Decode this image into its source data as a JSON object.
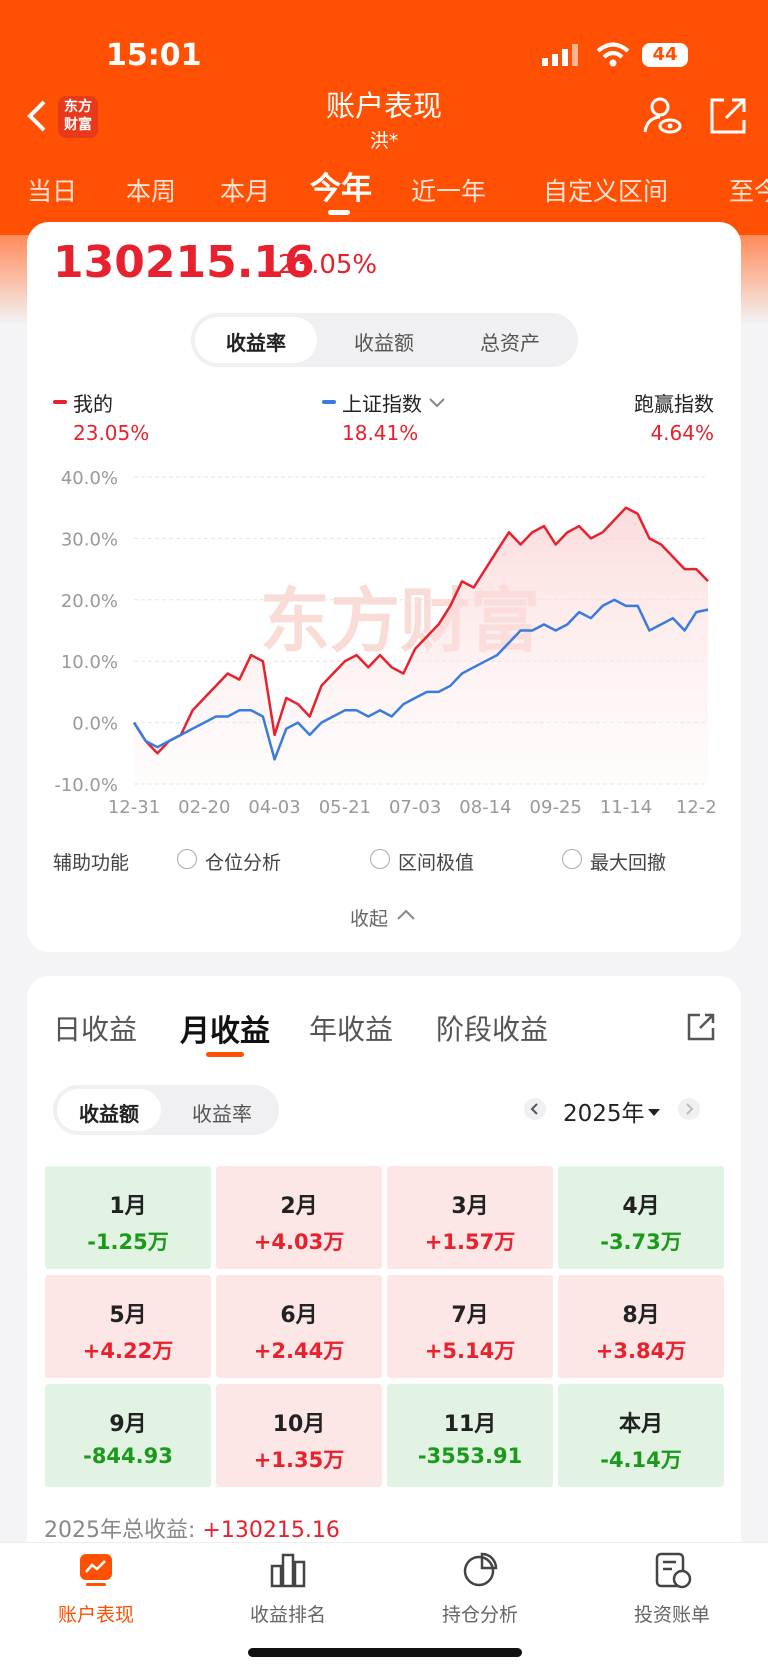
{
  "status_bar": {
    "time": "15:01",
    "battery": "44"
  },
  "header": {
    "logo": [
      "东方",
      "财富"
    ],
    "title": "账户表现",
    "subtitle": "洪*"
  },
  "period_tabs": [
    "当日",
    "本周",
    "本月",
    "今年",
    "近一年",
    "自定义区间",
    "至今"
  ],
  "summary": {
    "amount": "130215.16",
    "rate": "23.05%"
  },
  "chart_tabs": [
    "收益率",
    "收益额",
    "总资产"
  ],
  "legend_values": [
    "23.05%",
    "18.41%"
  ],
  "outperform": {
    "label": "跑赢指数",
    "value": "4.64%"
  },
  "watermark": "东方财富",
  "chart_data": {
    "type": "line",
    "categories": [
      "12-31",
      null,
      null,
      null,
      null,
      null,
      "02-20",
      null,
      null,
      null,
      null,
      null,
      "04-03",
      null,
      null,
      null,
      null,
      null,
      "05-21",
      null,
      null,
      null,
      null,
      null,
      "07-03",
      null,
      null,
      null,
      null,
      null,
      "08-14",
      null,
      null,
      null,
      null,
      null,
      "09-25",
      null,
      null,
      null,
      null,
      null,
      "11-14",
      null,
      null,
      null,
      null,
      null,
      "12-2",
      null
    ],
    "series": [
      {
        "name": "我的",
        "color": "#e8212e",
        "values": [
          0,
          -3,
          -5,
          -3,
          -2,
          2,
          4,
          6,
          8,
          7,
          11,
          10,
          -2,
          4,
          3,
          1,
          6,
          8,
          10,
          11,
          9,
          11,
          9,
          8,
          12,
          14,
          16,
          19,
          23,
          22,
          25,
          28,
          31,
          29,
          31,
          32,
          29,
          31,
          32,
          30,
          31,
          33,
          35,
          34,
          30,
          29,
          27,
          25,
          25,
          23.05
        ]
      },
      {
        "name": "上证指数",
        "color": "#3a7be0",
        "values": [
          0,
          -3,
          -4,
          -3,
          -2,
          -1,
          0,
          1,
          1,
          2,
          2,
          1,
          -6,
          -1,
          0,
          -2,
          0,
          1,
          2,
          2,
          1,
          2,
          1,
          3,
          4,
          5,
          5,
          6,
          8,
          9,
          10,
          11,
          13,
          15,
          15,
          16,
          15,
          16,
          18,
          17,
          19,
          20,
          19,
          19,
          15,
          16,
          17,
          15,
          18,
          18.41
        ]
      }
    ],
    "ylim": [
      -10,
      40
    ],
    "yticks": [
      {
        "value": -10,
        "label": "-10.0%"
      },
      {
        "value": 0,
        "label": "0.0%"
      },
      {
        "value": 10,
        "label": "10.0%"
      },
      {
        "value": 20,
        "label": "20.0%"
      },
      {
        "value": 30,
        "label": "30.0%"
      },
      {
        "value": 40,
        "label": "40.0%"
      }
    ],
    "grid": true
  },
  "aux": {
    "label": "辅助功能",
    "options": [
      "仓位分析",
      "区间极值",
      "最大回撤"
    ],
    "collapse": "收起"
  },
  "income_tabs": [
    "日收益",
    "月收益",
    "年收益",
    "阶段收益"
  ],
  "toggle": [
    "收益额",
    "收益率"
  ],
  "year": "2025年",
  "months": [
    {
      "month": "1月",
      "value": "-1.25万"
    },
    {
      "month": "2月",
      "value": "+4.03万"
    },
    {
      "month": "3月",
      "value": "+1.57万"
    },
    {
      "month": "4月",
      "value": "-3.73万"
    },
    {
      "month": "5月",
      "value": "+4.22万"
    },
    {
      "month": "6月",
      "value": "+2.44万"
    },
    {
      "month": "7月",
      "value": "+5.14万"
    },
    {
      "month": "8月",
      "value": "+3.84万"
    },
    {
      "month": "9月",
      "value": "-844.93"
    },
    {
      "month": "10月",
      "value": "+1.35万"
    },
    {
      "month": "11月",
      "value": "-3553.91"
    },
    {
      "month": "本月",
      "value": "-4.14万"
    }
  ],
  "total": {
    "label": "2025年总收益:",
    "value": "+130215.16"
  },
  "nav": [
    "账户表现",
    "收益排名",
    "持仓分析",
    "投资账单"
  ]
}
